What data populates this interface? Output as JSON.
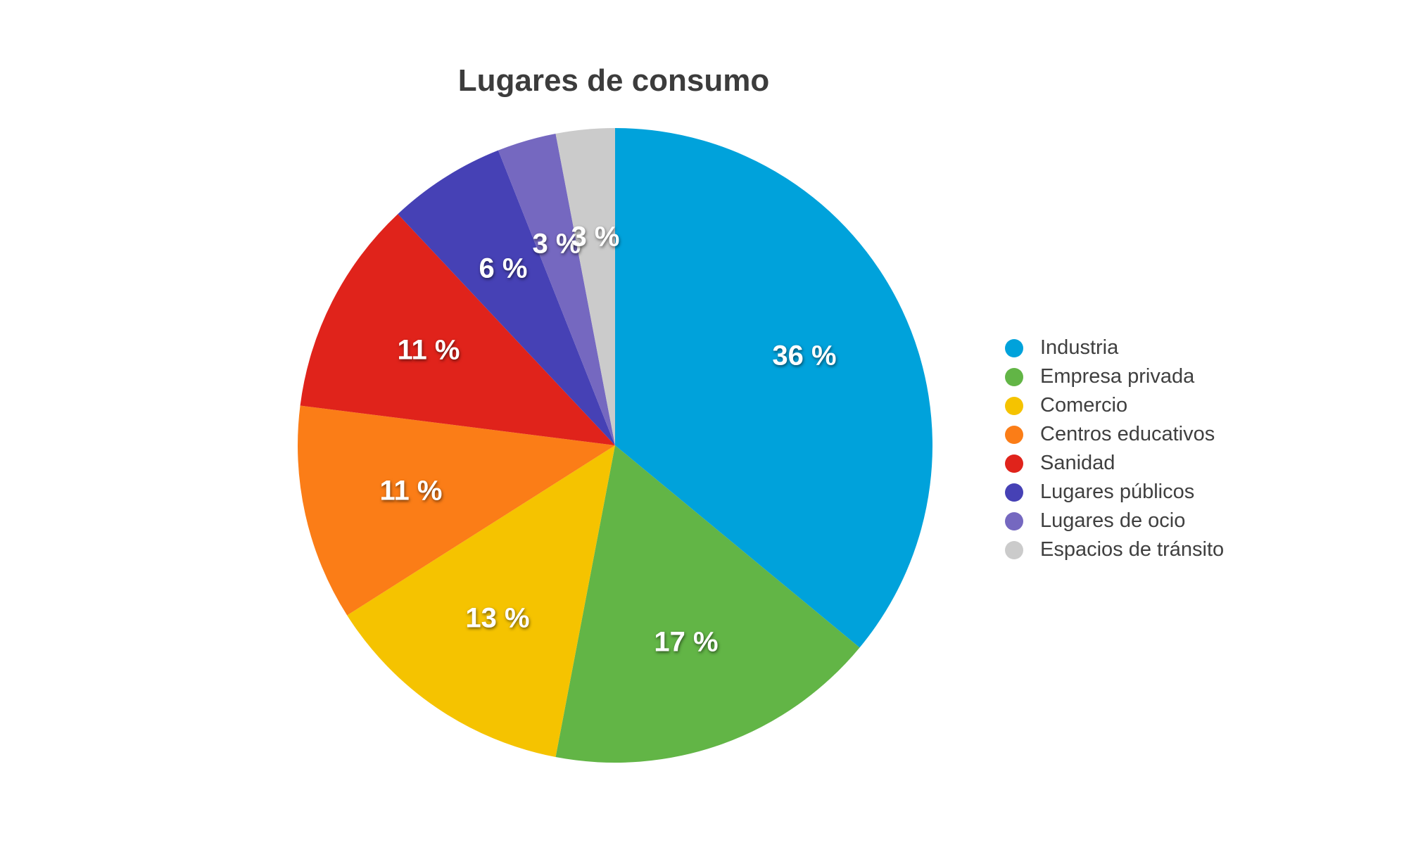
{
  "chart_data": {
    "type": "pie",
    "title": "Lugares de consumo",
    "categories": [
      "Industria",
      "Empresa privada",
      "Comercio",
      "Centros educativos",
      "Sanidad",
      "Lugares públicos",
      "Lugares de ocio",
      "Espacios de tránsito"
    ],
    "values": [
      36,
      17,
      13,
      11,
      11,
      6,
      3,
      3
    ],
    "unit": "%",
    "slice_labels": [
      "36 %",
      "17 %",
      "13 %",
      "11 %",
      "11 %",
      "6 %",
      "3 %",
      "3 %"
    ],
    "colors": [
      "#00A2DB",
      "#62B546",
      "#F5C300",
      "#FB7D17",
      "#E0231B",
      "#4641B5",
      "#7568C0",
      "#CBCBCB"
    ],
    "start_angle_deg": 0,
    "direction": "clockwise",
    "legend_position": "right",
    "background_color": "#FFFFFF",
    "title_color": "#3C3C3C",
    "legend_text_color": "#3F3F3F",
    "slice_label_color": "#FFFFFF"
  }
}
